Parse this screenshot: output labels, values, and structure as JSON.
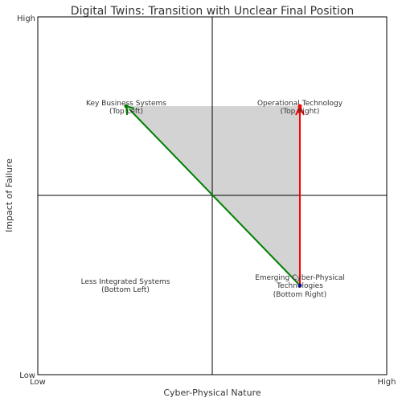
{
  "title": "Digital Twins: Transition with Unclear Final Position",
  "axes": {
    "x_label": "Cyber-Physical Nature",
    "y_label": "Impact of Failure",
    "x_low": "Low",
    "x_high": "High",
    "y_low": "Low",
    "y_high": "High"
  },
  "quadrants": {
    "top_left": {
      "line1": "Key Business Systems",
      "line2": "(Top Left)"
    },
    "top_right": {
      "line1": "Operational Technology",
      "line2": "(Top Right)"
    },
    "bottom_left": {
      "line1": "Less Integrated Systems",
      "line2": "(Bottom Left)"
    },
    "bottom_right": {
      "line1": "Emerging Cyber-Physical",
      "line2": "Technologies",
      "line3": "(Bottom Right)"
    }
  },
  "colors": {
    "shaded_region": "#d3d3d3",
    "green_arrow": "#008000",
    "red_arrow": "#ff0000",
    "start_point": "#0000cc",
    "axis": "#000000"
  }
}
